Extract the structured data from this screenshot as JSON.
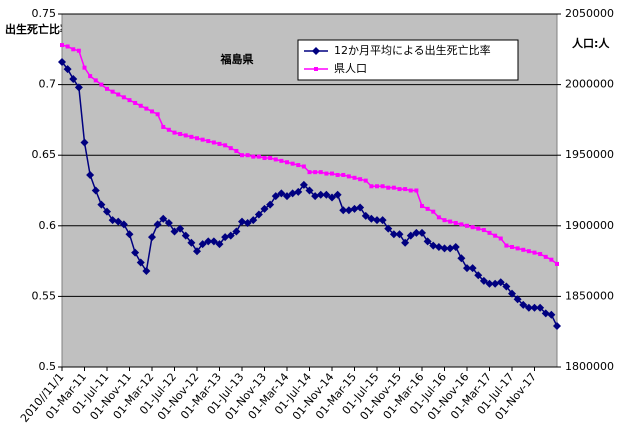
{
  "chart_data": {
    "type": "line",
    "title": "福島県",
    "y_label": "出生死亡比率",
    "y2_label": "人口:人",
    "categories": [
      "2010//11/1",
      null,
      null,
      null,
      "01-Mar-11",
      null,
      null,
      null,
      "01-Jul-11",
      null,
      null,
      null,
      "01-Nov-11",
      null,
      null,
      null,
      "01-Mar-12",
      null,
      null,
      null,
      "01-Jul-12",
      null,
      null,
      null,
      "01-Nov-12",
      null,
      null,
      null,
      "01-Mar-13",
      null,
      null,
      null,
      "01-Jul-13",
      null,
      null,
      null,
      "01-Nov-13",
      null,
      null,
      null,
      "01-Mar-14",
      null,
      null,
      null,
      "01-Jul-14",
      null,
      null,
      null,
      "01-Nov-14",
      null,
      null,
      null,
      "01-Mar-15",
      null,
      null,
      null,
      "01-Jul-15",
      null,
      null,
      null,
      "01-Nov-15",
      null,
      null,
      null,
      "01-Mar-16",
      null,
      null,
      null,
      "01-Jul-16",
      null,
      null,
      null,
      "01-Nov-16",
      null,
      null,
      null,
      "01-Mar-17",
      null,
      null,
      null,
      "01-Jul-17",
      null,
      null,
      null,
      "01-Nov-17",
      null,
      null,
      null,
      null
    ],
    "series": [
      {
        "name": "12か月平均による出生死亡比率",
        "color": "#000080",
        "marker": "diamond",
        "axis": "y",
        "values": [
          0.716,
          0.711,
          0.704,
          0.698,
          0.659,
          0.636,
          0.625,
          0.615,
          0.61,
          0.604,
          0.603,
          0.601,
          0.594,
          0.581,
          0.574,
          0.568,
          0.592,
          0.601,
          0.605,
          0.602,
          0.596,
          0.598,
          0.593,
          0.588,
          0.582,
          0.587,
          0.589,
          0.589,
          0.587,
          0.592,
          0.593,
          0.596,
          0.603,
          0.602,
          0.604,
          0.608,
          0.612,
          0.615,
          0.621,
          0.623,
          0.621,
          0.623,
          0.624,
          0.629,
          0.625,
          0.621,
          0.622,
          0.622,
          0.62,
          0.622,
          0.611,
          0.611,
          0.612,
          0.613,
          0.607,
          0.605,
          0.604,
          0.604,
          0.598,
          0.594,
          0.594,
          0.588,
          0.593,
          0.595,
          0.595,
          0.589,
          0.586,
          0.585,
          0.584,
          0.584,
          0.585,
          0.577,
          0.57,
          0.57,
          0.565,
          0.561,
          0.559,
          0.559,
          0.56,
          0.557,
          0.552,
          0.548,
          0.544,
          0.542,
          0.542,
          0.542,
          0.538,
          0.537,
          0.529
        ]
      },
      {
        "name": "県人口",
        "color": "#ff00ff",
        "marker": "square",
        "axis": "y2",
        "values": [
          2028000,
          2027000,
          2025000,
          2024000,
          2012000,
          2006000,
          2003000,
          2000000,
          1997000,
          1995000,
          1993000,
          1991000,
          1989000,
          1987000,
          1985000,
          1983000,
          1981000,
          1979000,
          1970000,
          1968000,
          1966000,
          1965000,
          1964000,
          1963000,
          1962000,
          1961000,
          1960000,
          1959000,
          1958000,
          1957000,
          1955000,
          1953000,
          1950000,
          1950000,
          1949000,
          1949000,
          1948000,
          1948000,
          1947000,
          1946000,
          1945000,
          1944000,
          1943000,
          1942000,
          1938000,
          1938000,
          1938000,
          1937000,
          1937000,
          1936000,
          1936000,
          1935000,
          1934000,
          1933000,
          1932000,
          1928000,
          1928000,
          1928000,
          1927000,
          1927000,
          1926000,
          1926000,
          1925000,
          1925000,
          1914000,
          1912000,
          1910000,
          1906000,
          1904000,
          1903000,
          1902000,
          1901000,
          1900000,
          1899000,
          1898000,
          1897000,
          1895000,
          1893000,
          1891000,
          1886000,
          1885000,
          1884000,
          1883000,
          1882000,
          1881000,
          1880000,
          1878000,
          1876000,
          1873000
        ]
      }
    ],
    "ylim": [
      0.5,
      0.75
    ],
    "yticks": [
      0.5,
      0.55,
      0.6,
      0.65,
      0.7,
      0.75
    ],
    "y2lim": [
      1800000,
      2050000
    ],
    "y2ticks": [
      1800000,
      1850000,
      1900000,
      1950000,
      2000000,
      2050000
    ],
    "grid": true,
    "legend": "top-right",
    "background": "#c0c0c0"
  }
}
